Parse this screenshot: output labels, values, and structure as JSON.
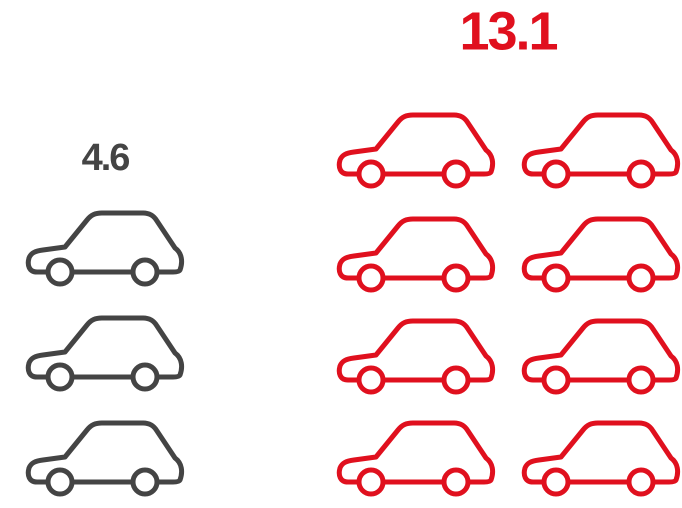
{
  "chart_data": {
    "type": "pictograph",
    "categories": [
      null,
      null
    ],
    "values": [
      4.6,
      13.1
    ],
    "colors": [
      "#444444",
      "#e0101e"
    ]
  }
}
